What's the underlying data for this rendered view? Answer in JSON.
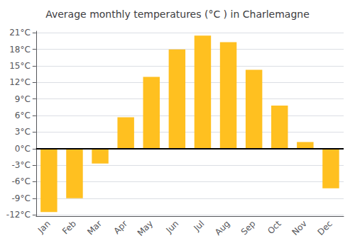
{
  "chart_data": {
    "type": "bar",
    "title": "Average monthly temperatures (°C ) in Charlemagne",
    "categories": [
      "Jan",
      "Feb",
      "Mar",
      "Apr",
      "May",
      "Jun",
      "Jul",
      "Aug",
      "Sep",
      "Oct",
      "Nov",
      "Dec"
    ],
    "values": [
      -11.5,
      -9.0,
      -2.7,
      5.7,
      13.0,
      18.0,
      20.5,
      19.3,
      14.3,
      7.8,
      1.2,
      -7.2
    ],
    "color": "#FFC020",
    "ylim": [
      -12.3,
      21.3
    ],
    "yticks": [
      {
        "value": -12,
        "label": "-12°C"
      },
      {
        "value": -9,
        "label": "-9°C"
      },
      {
        "value": -6,
        "label": "-6°C"
      },
      {
        "value": -3,
        "label": "-3°C"
      },
      {
        "value": 0,
        "label": "0°C"
      },
      {
        "value": 3,
        "label": "3°C"
      },
      {
        "value": 6,
        "label": "6°C"
      },
      {
        "value": 9,
        "label": "9°C"
      },
      {
        "value": 12,
        "label": "12°C"
      },
      {
        "value": 15,
        "label": "15°C"
      },
      {
        "value": 18,
        "label": "18°C"
      },
      {
        "value": 21,
        "label": "21°C"
      }
    ],
    "grid": true
  }
}
